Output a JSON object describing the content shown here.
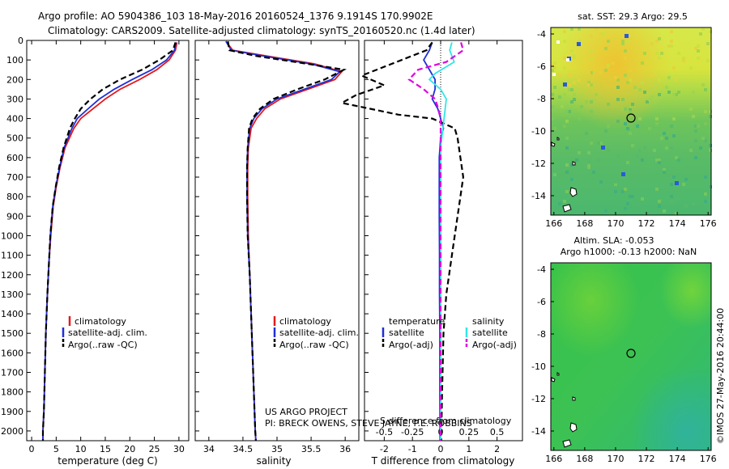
{
  "header": {
    "line1": "Argo profile: AO 5904386_103 18-May-2016 20160524_1376 9.1914S 170.9902E",
    "line2": "Climatology: CARS2009. Satellite-adjusted climatology: synTS_20160520.nc (1.4d later)"
  },
  "colors": {
    "climatology": "#e41a1c",
    "satellite": "#1f2fd6",
    "argo": "#000000",
    "sal_satellite": "#33e5e5",
    "sal_argo": "#e000e0"
  },
  "chart_data": [
    {
      "id": "temperature",
      "type": "line",
      "xlabel": "temperature (deg C)",
      "ylabel": "",
      "xlim": [
        -1,
        32
      ],
      "ylim": [
        2050,
        0
      ],
      "xticks": [
        0,
        5,
        10,
        15,
        20,
        25,
        30
      ],
      "yticks": [
        0,
        100,
        200,
        300,
        400,
        500,
        600,
        700,
        800,
        900,
        1000,
        1100,
        1200,
        1300,
        1400,
        1500,
        1600,
        1700,
        1800,
        1900,
        2000
      ],
      "legend": [
        "climatology",
        "satellite-adj. clim.",
        "Argo(..raw -QC)"
      ],
      "series": [
        {
          "name": "climatology",
          "style": "solid",
          "color": "#e41a1c",
          "x": [
            29.6,
            29.3,
            28.0,
            25.5,
            22.0,
            18.0,
            15.0,
            12.5,
            10.0,
            8.6,
            6.8,
            5.8,
            5.0,
            4.4,
            3.9,
            3.5,
            3.2,
            2.9,
            2.7,
            2.5,
            2.3,
            2.3
          ],
          "y": [
            10,
            50,
            100,
            150,
            200,
            250,
            300,
            350,
            400,
            450,
            550,
            650,
            750,
            850,
            1000,
            1150,
            1300,
            1500,
            1700,
            1900,
            2000,
            2050
          ]
        },
        {
          "name": "satellite-adj. clim.",
          "style": "solid",
          "color": "#1f2fd6",
          "x": [
            29.4,
            29.1,
            27.5,
            24.5,
            20.5,
            16.8,
            13.8,
            11.5,
            9.3,
            8.2,
            6.6,
            5.7,
            4.9,
            4.3,
            3.8,
            3.5,
            3.2,
            2.9,
            2.7,
            2.5,
            2.3,
            2.3
          ],
          "y": [
            10,
            50,
            100,
            150,
            200,
            250,
            300,
            350,
            400,
            450,
            550,
            650,
            750,
            850,
            1000,
            1150,
            1300,
            1500,
            1700,
            1900,
            2000,
            2050
          ]
        },
        {
          "name": "Argo(..raw -QC)",
          "style": "dashed",
          "color": "#000000",
          "x": [
            29.3,
            28.8,
            26.0,
            22.5,
            18.0,
            14.5,
            12.0,
            10.0,
            8.8,
            7.8,
            6.5,
            5.6,
            4.9,
            4.3,
            3.8,
            3.5,
            3.2,
            2.9,
            2.7,
            2.5,
            2.3,
            2.3
          ],
          "y": [
            10,
            50,
            100,
            150,
            200,
            250,
            300,
            350,
            400,
            450,
            550,
            650,
            750,
            850,
            1000,
            1150,
            1300,
            1500,
            1700,
            1900,
            2000,
            2050
          ]
        }
      ]
    },
    {
      "id": "salinity",
      "type": "line",
      "xlabel": "salinity",
      "xlim": [
        33.8,
        36.2
      ],
      "ylim": [
        2050,
        0
      ],
      "xticks": [
        34,
        34.5,
        35,
        35.5,
        36
      ],
      "tick_labels": [
        "34",
        "34.5",
        "35",
        "35.5",
        "36"
      ],
      "legend": [
        "climatology",
        "satellite-adj. clim.",
        "Argo(..raw -QC)"
      ],
      "series": [
        {
          "name": "climatology",
          "style": "solid",
          "color": "#e41a1c",
          "x": [
            34.25,
            34.35,
            34.85,
            35.55,
            35.95,
            35.85,
            35.45,
            35.05,
            34.82,
            34.7,
            34.62,
            34.58,
            34.57,
            34.57,
            34.58,
            34.6,
            34.62,
            34.64,
            34.66,
            34.68,
            34.69
          ],
          "y": [
            5,
            50,
            80,
            120,
            160,
            200,
            250,
            300,
            350,
            400,
            450,
            550,
            650,
            800,
            1000,
            1200,
            1400,
            1600,
            1800,
            2000,
            2050
          ]
        },
        {
          "name": "satellite-adj. clim.",
          "style": "solid",
          "color": "#1f2fd6",
          "x": [
            34.25,
            34.33,
            34.8,
            35.5,
            35.92,
            35.8,
            35.4,
            35.0,
            34.78,
            34.66,
            34.6,
            34.57,
            34.56,
            34.56,
            34.57,
            34.6,
            34.62,
            34.64,
            34.66,
            34.68,
            34.69
          ],
          "y": [
            5,
            50,
            80,
            120,
            160,
            200,
            250,
            300,
            350,
            400,
            450,
            550,
            650,
            800,
            1000,
            1200,
            1400,
            1600,
            1800,
            2000,
            2050
          ]
        },
        {
          "name": "Argo(..raw -QC)",
          "style": "dashed",
          "color": "#000000",
          "x": [
            34.28,
            34.3,
            34.7,
            35.45,
            35.98,
            35.7,
            35.3,
            34.95,
            34.75,
            34.64,
            34.59,
            34.57,
            34.56,
            34.56,
            34.57,
            34.6,
            34.62,
            34.64,
            34.66,
            34.68,
            34.69
          ],
          "y": [
            5,
            50,
            80,
            120,
            150,
            200,
            250,
            300,
            350,
            400,
            450,
            550,
            650,
            800,
            1000,
            1200,
            1400,
            1600,
            1800,
            2000,
            2050
          ]
        }
      ],
      "annotation": [
        "US ARGO PROJECT",
        "PI: BRECK OWENS, STEVE JAYNE, P.E. ROBBINS"
      ]
    },
    {
      "id": "differences",
      "type": "line",
      "xlabel": "T difference from climatology",
      "top_label": "S difference from climatology",
      "xlim": [
        -2.7,
        2.9
      ],
      "ylim": [
        2050,
        0
      ],
      "xticks": [
        -2,
        -1,
        0,
        1,
        2
      ],
      "tick_labels": [
        "-2",
        "-1",
        "0",
        "1",
        "2"
      ],
      "s_xticks": [
        -0.5,
        -0.25,
        0,
        0.25,
        0.5
      ],
      "s_tick_labels": [
        "-0.5",
        "-0.25",
        "0",
        "0.25",
        "0.5"
      ],
      "s_scale": 4,
      "legend_t": {
        "title": "temperature",
        "items": [
          "satellite",
          "Argo(-adj)"
        ]
      },
      "legend_s": {
        "title": "salinity",
        "items": [
          "satellite",
          "Argo(-adj)"
        ]
      },
      "series": [
        {
          "name": "temperature satellite",
          "style": "solid",
          "color": "#1f2fd6",
          "x": [
            -0.3,
            -0.4,
            -0.6,
            -0.4,
            -0.2,
            -0.2,
            -0.3,
            -0.1,
            0.0,
            0.1,
            0.0,
            -0.05,
            -0.05,
            -0.05,
            -0.04,
            -0.04,
            -0.03,
            -0.03,
            -0.02
          ],
          "y": [
            10,
            50,
            100,
            150,
            200,
            250,
            300,
            350,
            400,
            450,
            500,
            600,
            700,
            900,
            1100,
            1300,
            1500,
            1800,
            2050
          ]
        },
        {
          "name": "temperature Argo(-adj)",
          "style": "dashed",
          "color": "#000000",
          "x": [
            -0.3,
            -0.5,
            -2.8,
            -2.0,
            -3.0,
            -3.5,
            -2.5,
            -1.5,
            -0.3,
            0.5,
            0.6,
            0.7,
            0.8,
            0.6,
            0.4,
            0.2,
            0.1,
            0.05,
            0.02
          ],
          "y": [
            10,
            50,
            180,
            230,
            280,
            320,
            350,
            380,
            400,
            450,
            500,
            600,
            700,
            900,
            1100,
            1300,
            1500,
            1800,
            2050
          ]
        },
        {
          "name": "salinity satellite",
          "style": "solid",
          "color": "#33e5e5",
          "x": [
            0.1,
            0.08,
            0.12,
            -0.05,
            -0.1,
            0.0,
            0.05,
            0.04,
            0.03,
            0.02,
            0.0,
            0.0,
            0.0,
            0.0,
            0.0,
            0.0,
            0.0
          ],
          "y": [
            10,
            50,
            110,
            170,
            200,
            250,
            300,
            350,
            400,
            450,
            550,
            700,
            900,
            1200,
            1500,
            1800,
            2050
          ]
        },
        {
          "name": "salinity Argo(-adj)",
          "style": "dashed",
          "color": "#e000e0",
          "x": [
            0.18,
            0.2,
            0.05,
            -0.2,
            -0.28,
            -0.15,
            -0.05,
            -0.02,
            0.0,
            0.0,
            0.0,
            0.0,
            0.0,
            0.0,
            0.0,
            0.0
          ],
          "y": [
            10,
            50,
            110,
            150,
            200,
            250,
            300,
            350,
            400,
            500,
            650,
            900,
            1200,
            1500,
            1800,
            2050
          ]
        }
      ]
    },
    {
      "id": "sst_map",
      "type": "heatmap",
      "title": "sat. SST: 29.3  Argo: 29.5",
      "xticks": [
        166,
        168,
        170,
        172,
        174,
        176
      ],
      "yticks": [
        -4,
        -6,
        -8,
        -10,
        -12,
        -14
      ],
      "xlim": [
        165.8,
        176.2
      ],
      "ylim": [
        -15.2,
        -3.6
      ],
      "marker": {
        "lon": 171.0,
        "lat": -9.2
      }
    },
    {
      "id": "sla_map",
      "type": "heatmap",
      "title": "Altim. SLA: -0.053",
      "subtitle": "Argo h1000: -0.13 h2000: NaN",
      "xticks": [
        166,
        168,
        170,
        172,
        174,
        176
      ],
      "yticks": [
        -4,
        -6,
        -8,
        -10,
        -12,
        -14
      ],
      "xlim": [
        165.8,
        176.2
      ],
      "ylim": [
        -15.2,
        -3.6
      ],
      "marker": {
        "lon": 171.0,
        "lat": -9.2
      }
    }
  ],
  "footer": {
    "credit": "©IMOS 27-May-2016 20:44:00"
  }
}
